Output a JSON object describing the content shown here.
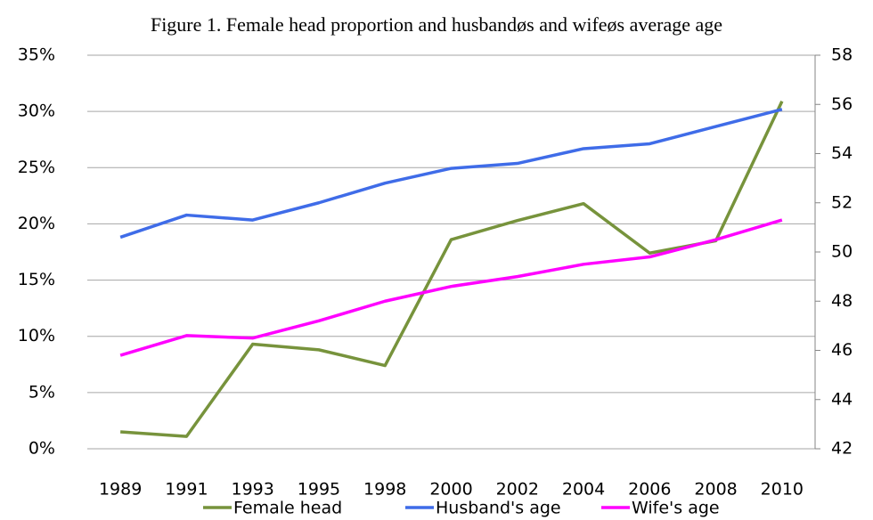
{
  "chart_data": {
    "type": "line",
    "title": "Figure 1. Female head proportion and husbandøs and wifeøs average age",
    "categories": [
      "1989",
      "1991",
      "1993",
      "1995",
      "1998",
      "2000",
      "2002",
      "2004",
      "2006",
      "2008",
      "2010"
    ],
    "series": [
      {
        "name": "Female head",
        "color": "#77933c",
        "values": [
          1.5,
          1.1,
          9.3,
          8.8,
          7.4,
          18.6,
          20.3,
          21.8,
          17.4,
          18.5,
          30.9
        ]
      },
      {
        "name": "Husband's age",
        "color": "#3f6ce8",
        "axis": "y2",
        "values": [
          50.6,
          51.5,
          51.3,
          52.0,
          52.8,
          53.4,
          53.6,
          54.2,
          54.4,
          55.1,
          55.8
        ]
      },
      {
        "name": "Wife's age",
        "color": "#ff00ff",
        "axis": "y2",
        "values": [
          45.8,
          46.6,
          46.5,
          47.2,
          48.0,
          48.6,
          49.0,
          49.5,
          49.8,
          50.5,
          51.3
        ]
      }
    ],
    "ylim": [
      0,
      35
    ],
    "yticks": [
      {
        "value": 0,
        "label": "0%"
      },
      {
        "value": 5,
        "label": "5%"
      },
      {
        "value": 10,
        "label": "10%"
      },
      {
        "value": 15,
        "label": "15%"
      },
      {
        "value": 20,
        "label": "20%"
      },
      {
        "value": 25,
        "label": "25%"
      },
      {
        "value": 30,
        "label": "30%"
      },
      {
        "value": 35,
        "label": "35%"
      }
    ],
    "y2lim": [
      42,
      58
    ],
    "y2ticks": [
      42,
      44,
      46,
      48,
      50,
      52,
      54,
      56,
      58
    ],
    "grid": true,
    "legend": "bottom"
  }
}
